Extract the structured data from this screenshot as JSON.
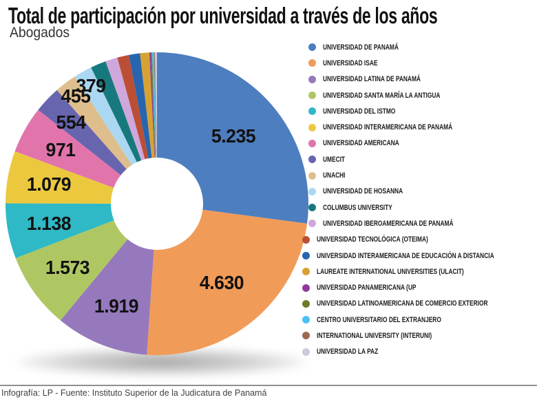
{
  "header": {
    "title": "Total de participación por universidad a través de los años",
    "subtitle": "Abogados"
  },
  "footer": {
    "credit": "Infografía: LP - Fuente: Instituto Superior de la Judicatura de Panamá"
  },
  "chart_data": {
    "type": "pie",
    "title": "Total de participación por universidad a través de los años",
    "subtitle": "Abogados",
    "donut": true,
    "start_angle_deg": 0,
    "direction": "clockwise",
    "legend_position": "right",
    "total_shown_labels": [
      "5.235",
      "4.630",
      "1.919",
      "1.573",
      "1.138",
      "1.079",
      "971",
      "554",
      "455",
      "379"
    ],
    "series": [
      {
        "name": "UNIVERSIDAD DE PANAMÁ",
        "value": 5235,
        "label": "5.235",
        "color": "#4D7EBF"
      },
      {
        "name": "UNIVERSIDAD ISAE",
        "value": 4630,
        "label": "4.630",
        "color": "#F19B58"
      },
      {
        "name": "UNIVERSIDAD LATINA DE PANAMÁ",
        "value": 1919,
        "label": "1.919",
        "color": "#9679BC"
      },
      {
        "name": "UNIVERSIDAD SANTA MARÍA LA ANTIGUA",
        "value": 1573,
        "label": "1.573",
        "color": "#AFC763"
      },
      {
        "name": "UNIVERSIDAD DEL ISTMO",
        "value": 1138,
        "label": "1.138",
        "color": "#2FB9C6"
      },
      {
        "name": "UNIVERSIDAD INTERAMERICANA DE PANAMÁ",
        "value": 1079,
        "label": "1.079",
        "color": "#ECC83E"
      },
      {
        "name": "UNIVERSIDAD AMERICANA",
        "value": 971,
        "label": "971",
        "color": "#E274AC"
      },
      {
        "name": "UMECIT",
        "value": 554,
        "label": "554",
        "color": "#6765AE"
      },
      {
        "name": "UNACHI",
        "value": 455,
        "label": "455",
        "color": "#DFBE8D"
      },
      {
        "name": "UNIVERSIDAD DE HOSANNA",
        "value": 379,
        "label": "379",
        "color": "#AAD8F2"
      },
      {
        "name": "COLUMBUS UNIVERSITY",
        "value": 320,
        "label": "",
        "color": "#17797E",
        "estimated": true
      },
      {
        "name": "UNIVERSIDAD IBEROAMERICANA DE PANAMÁ",
        "value": 250,
        "label": "",
        "color": "#D0A7DC",
        "estimated": true
      },
      {
        "name": "UNIVERSIDAD TECNOLÓGICA (OTEIMA)",
        "value": 240,
        "label": "",
        "color": "#BB4F36",
        "estimated": true
      },
      {
        "name": "UNIVERSIDAD INTERAMERICANA DE EDUCACIÓN A DISTANCIA",
        "value": 230,
        "label": "",
        "color": "#2765AF",
        "estimated": true
      },
      {
        "name": "LAUREATE INTERNATIONAL UNIVERSITIES (ULACIT)",
        "value": 190,
        "label": "",
        "color": "#D7A233",
        "estimated": true
      },
      {
        "name": "UNIVERSIDAD PANAMERICANA (UP",
        "value": 30,
        "label": "",
        "color": "#93399B",
        "estimated": true
      },
      {
        "name": "UNIVERSIDAD LATINOAMERICANA DE COMERCIO EXTERIOR",
        "value": 25,
        "label": "",
        "color": "#6F7A28",
        "estimated": true
      },
      {
        "name": "CENTRO UNIVERSITARIO DEL EXTRANJERO",
        "value": 40,
        "label": "",
        "color": "#49C2F1",
        "estimated": true
      },
      {
        "name": "INTERNATIONAL UNIVERSITY (INTERUNI)",
        "value": 20,
        "label": "",
        "color": "#9A6A52",
        "estimated": true
      },
      {
        "name": "UNIVERSIDAD LA PAZ",
        "value": 40,
        "label": "",
        "color": "#C9CBDF",
        "estimated": true
      }
    ]
  }
}
